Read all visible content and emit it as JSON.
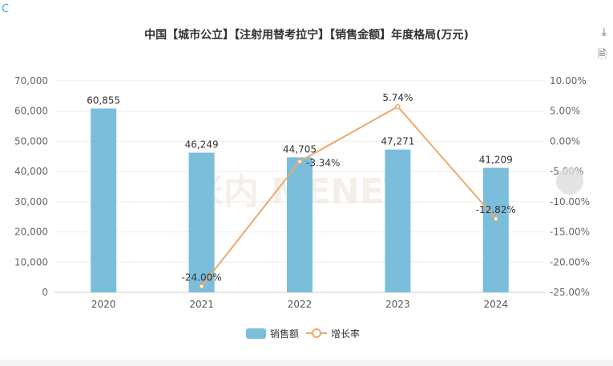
{
  "corner_label": "C",
  "title": "中国【城市公立】【注射用替考拉宁】【销售金额】年度格局(万元)",
  "toolbar": {
    "download_icon": "download-icon",
    "data_view_icon": "document-icon"
  },
  "watermark": "米内 MENET",
  "chart_data": {
    "type": "bar+line",
    "categories": [
      "2020",
      "2021",
      "2022",
      "2023",
      "2024"
    ],
    "series": [
      {
        "name": "销售额",
        "type": "bar",
        "axis": "left",
        "values": [
          60855,
          46249,
          44705,
          47271,
          41209
        ],
        "labels": [
          "60,855",
          "46,249",
          "44,705",
          "47,271",
          "41,209"
        ],
        "color": "#7bbedc"
      },
      {
        "name": "增长率",
        "type": "line",
        "axis": "right",
        "values": [
          null,
          -24.0,
          -3.34,
          5.74,
          -12.82
        ],
        "labels": [
          "",
          "-24.00%",
          "-3.34%",
          "5.74%",
          "-12.82%"
        ],
        "color": "#eea96b"
      }
    ],
    "left_axis": {
      "ylim": [
        0,
        70000
      ],
      "ticks": [
        "0",
        "10,000",
        "20,000",
        "30,000",
        "40,000",
        "50,000",
        "60,000",
        "70,000"
      ]
    },
    "right_axis": {
      "ylim": [
        -25,
        10
      ],
      "ticks": [
        "-25.00%",
        "-20.00%",
        "-15.00%",
        "-10.00%",
        "-5.00%",
        "0.00%",
        "5.00%",
        "10.00%"
      ]
    },
    "grid": true,
    "legend": "bottom-center"
  }
}
